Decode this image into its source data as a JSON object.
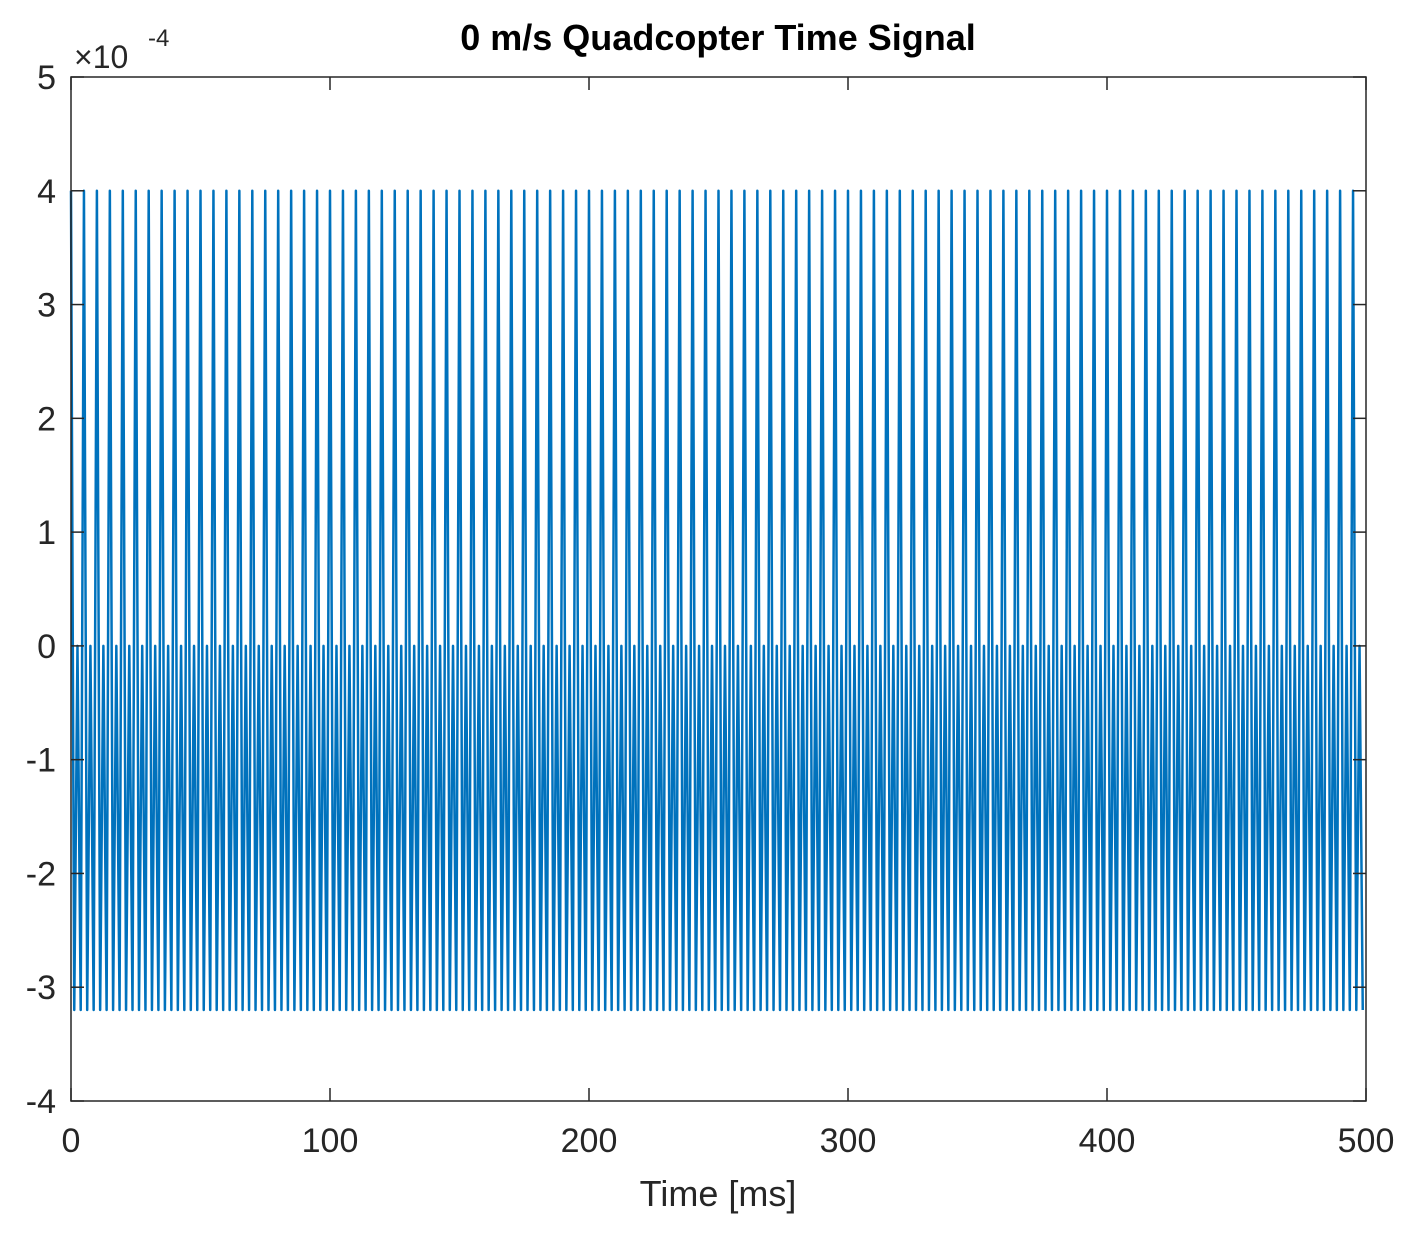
{
  "chart_data": {
    "type": "line",
    "title": "0 m/s Quadcopter Time Signal",
    "x_label": "Time [ms]",
    "y_exponent": {
      "base": "×10",
      "power": "-4"
    },
    "color": "#0072bd",
    "xlim": [
      0,
      500
    ],
    "xticks": [
      0,
      100,
      200,
      300,
      400,
      500
    ],
    "ylim": [
      -4,
      5
    ],
    "yticks": [
      -4,
      -3,
      -2,
      -1,
      0,
      1,
      2,
      3,
      4,
      5
    ],
    "x": [
      0,
      1.25,
      2.5,
      3.75,
      5,
      6.25,
      7.5,
      8.75,
      10,
      11.25,
      12.5,
      13.75,
      15,
      16.25,
      17.5,
      18.75,
      20,
      21.25,
      22.5,
      23.75,
      25,
      26.25,
      27.5,
      28.75,
      30,
      31.25,
      32.5,
      33.75,
      35,
      36.25,
      37.5,
      38.75,
      40,
      41.25,
      42.5,
      43.75,
      45,
      46.25,
      47.5,
      48.75,
      50,
      51.25,
      52.5,
      53.75,
      55,
      56.25,
      57.5,
      58.75,
      60,
      61.25,
      62.5,
      63.75,
      65,
      66.25,
      67.5,
      68.75,
      70,
      71.25,
      72.5,
      73.75,
      75,
      76.25,
      77.5,
      78.75,
      80,
      81.25,
      82.5,
      83.75,
      85,
      86.25,
      87.5,
      88.75,
      90,
      91.25,
      92.5,
      93.75,
      95,
      96.25,
      97.5,
      98.75,
      100,
      101.25,
      102.5,
      103.75,
      105,
      106.25,
      107.5,
      108.75,
      110,
      111.25,
      112.5,
      113.75,
      115,
      116.25,
      117.5,
      118.75,
      120,
      121.25,
      122.5,
      123.75,
      125,
      126.25,
      127.5,
      128.75,
      130,
      131.25,
      132.5,
      133.75,
      135,
      136.25,
      137.5,
      138.75,
      140,
      141.25,
      142.5,
      143.75,
      145,
      146.25,
      147.5,
      148.75,
      150,
      151.25,
      152.5,
      153.75,
      155,
      156.25,
      157.5,
      158.75,
      160,
      161.25,
      162.5,
      163.75,
      165,
      166.25,
      167.5,
      168.75,
      170,
      171.25,
      172.5,
      173.75,
      175,
      176.25,
      177.5,
      178.75,
      180,
      181.25,
      182.5,
      183.75,
      185,
      186.25,
      187.5,
      188.75,
      190,
      191.25,
      192.5,
      193.75,
      195,
      196.25,
      197.5,
      198.75,
      200,
      201.25,
      202.5,
      203.75,
      205,
      206.25,
      207.5,
      208.75,
      210,
      211.25,
      212.5,
      213.75,
      215,
      216.25,
      217.5,
      218.75,
      220,
      221.25,
      222.5,
      223.75,
      225,
      226.25,
      227.5,
      228.75,
      230,
      231.25,
      232.5,
      233.75,
      235,
      236.25,
      237.5,
      238.75,
      240,
      241.25,
      242.5,
      243.75,
      245,
      246.25,
      247.5,
      248.75,
      250,
      251.25,
      252.5,
      253.75,
      255,
      256.25,
      257.5,
      258.75,
      260,
      261.25,
      262.5,
      263.75,
      265,
      266.25,
      267.5,
      268.75,
      270,
      271.25,
      272.5,
      273.75,
      275,
      276.25,
      277.5,
      278.75,
      280,
      281.25,
      282.5,
      283.75,
      285,
      286.25,
      287.5,
      288.75,
      290,
      291.25,
      292.5,
      293.75,
      295,
      296.25,
      297.5,
      298.75,
      300,
      301.25,
      302.5,
      303.75,
      305,
      306.25,
      307.5,
      308.75,
      310,
      311.25,
      312.5,
      313.75,
      315,
      316.25,
      317.5,
      318.75,
      320,
      321.25,
      322.5,
      323.75,
      325,
      326.25,
      327.5,
      328.75,
      330,
      331.25,
      332.5,
      333.75,
      335,
      336.25,
      337.5,
      338.75,
      340,
      341.25,
      342.5,
      343.75,
      345,
      346.25,
      347.5,
      348.75,
      350,
      351.25,
      352.5,
      353.75,
      355,
      356.25,
      357.5,
      358.75,
      360,
      361.25,
      362.5,
      363.75,
      365,
      366.25,
      367.5,
      368.75,
      370,
      371.25,
      372.5,
      373.75,
      375,
      376.25,
      377.5,
      378.75,
      380,
      381.25,
      382.5,
      383.75,
      385,
      386.25,
      387.5,
      388.75,
      390,
      391.25,
      392.5,
      393.75,
      395,
      396.25,
      397.5,
      398.75,
      400,
      401.25,
      402.5,
      403.75,
      405,
      406.25,
      407.5,
      408.75,
      410,
      411.25,
      412.5,
      413.75,
      415,
      416.25,
      417.5,
      418.75,
      420,
      421.25,
      422.5,
      423.75,
      425,
      426.25,
      427.5,
      428.75,
      430,
      431.25,
      432.5,
      433.75,
      435,
      436.25,
      437.5,
      438.75,
      440,
      441.25,
      442.5,
      443.75,
      445,
      446.25,
      447.5,
      448.75,
      450,
      451.25,
      452.5,
      453.75,
      455,
      456.25,
      457.5,
      458.75,
      460,
      461.25,
      462.5,
      463.75,
      465,
      466.25,
      467.5,
      468.75,
      470,
      471.25,
      472.5,
      473.75,
      475,
      476.25,
      477.5,
      478.75,
      480,
      481.25,
      482.5,
      483.75,
      485,
      486.25,
      487.5,
      488.75,
      490,
      491.25,
      492.5,
      493.75,
      495,
      496.25,
      497.5,
      498.75
    ],
    "values": [
      4,
      -3.2,
      0,
      -3.2,
      4,
      -3.2,
      0,
      -3.2,
      4,
      -3.2,
      0,
      -3.2,
      4,
      -3.2,
      0,
      -3.2,
      4,
      -3.2,
      0,
      -3.2,
      4,
      -3.2,
      0,
      -3.2,
      4,
      -3.2,
      0,
      -3.2,
      4,
      -3.2,
      0,
      -3.2,
      4,
      -3.2,
      0,
      -3.2,
      4,
      -3.2,
      0,
      -3.2,
      4,
      -3.2,
      0,
      -3.2,
      4,
      -3.2,
      0,
      -3.2,
      4,
      -3.2,
      0,
      -3.2,
      4,
      -3.2,
      0,
      -3.2,
      4,
      -3.2,
      0,
      -3.2,
      4,
      -3.2,
      0,
      -3.2,
      4,
      -3.2,
      0,
      -3.2,
      4,
      -3.2,
      0,
      -3.2,
      4,
      -3.2,
      0,
      -3.2,
      4,
      -3.2,
      0,
      -3.2,
      4,
      -3.2,
      0,
      -3.2,
      4,
      -3.2,
      0,
      -3.2,
      4,
      -3.2,
      0,
      -3.2,
      4,
      -3.2,
      0,
      -3.2,
      4,
      -3.2,
      0,
      -3.2,
      4,
      -3.2,
      0,
      -3.2,
      4,
      -3.2,
      0,
      -3.2,
      4,
      -3.2,
      0,
      -3.2,
      4,
      -3.2,
      0,
      -3.2,
      4,
      -3.2,
      0,
      -3.2,
      4,
      -3.2,
      0,
      -3.2,
      4,
      -3.2,
      0,
      -3.2,
      4,
      -3.2,
      0,
      -3.2,
      4,
      -3.2,
      0,
      -3.2,
      4,
      -3.2,
      0,
      -3.2,
      4,
      -3.2,
      0,
      -3.2,
      4,
      -3.2,
      0,
      -3.2,
      4,
      -3.2,
      0,
      -3.2,
      4,
      -3.2,
      0,
      -3.2,
      4,
      -3.2,
      0,
      -3.2,
      4,
      -3.2,
      0,
      -3.2,
      4,
      -3.2,
      0,
      -3.2,
      4,
      -3.2,
      0,
      -3.2,
      4,
      -3.2,
      0,
      -3.2,
      4,
      -3.2,
      0,
      -3.2,
      4,
      -3.2,
      0,
      -3.2,
      4,
      -3.2,
      0,
      -3.2,
      4,
      -3.2,
      0,
      -3.2,
      4,
      -3.2,
      0,
      -3.2,
      4,
      -3.2,
      0,
      -3.2,
      4,
      -3.2,
      0,
      -3.2,
      4,
      -3.2,
      0,
      -3.2,
      4,
      -3.2,
      0,
      -3.2,
      4,
      -3.2,
      0,
      -3.2,
      4,
      -3.2,
      0,
      -3.2,
      4,
      -3.2,
      0,
      -3.2,
      4,
      -3.2,
      0,
      -3.2,
      4,
      -3.2,
      0,
      -3.2,
      4,
      -3.2,
      0,
      -3.2,
      4,
      -3.2,
      0,
      -3.2,
      4,
      -3.2,
      0,
      -3.2,
      4,
      -3.2,
      0,
      -3.2,
      4,
      -3.2,
      0,
      -3.2,
      4,
      -3.2,
      0,
      -3.2,
      4,
      -3.2,
      0,
      -3.2,
      4,
      -3.2,
      0,
      -3.2,
      4,
      -3.2,
      0,
      -3.2,
      4,
      -3.2,
      0,
      -3.2,
      4,
      -3.2,
      0,
      -3.2,
      4,
      -3.2,
      0,
      -3.2,
      4,
      -3.2,
      0,
      -3.2,
      4,
      -3.2,
      0,
      -3.2,
      4,
      -3.2,
      0,
      -3.2,
      4,
      -3.2,
      0,
      -3.2,
      4,
      -3.2,
      0,
      -3.2,
      4,
      -3.2,
      0,
      -3.2,
      4,
      -3.2,
      0,
      -3.2,
      4,
      -3.2,
      0,
      -3.2,
      4,
      -3.2,
      0,
      -3.2,
      4,
      -3.2,
      0,
      -3.2,
      4,
      -3.2,
      0,
      -3.2,
      4,
      -3.2,
      0,
      -3.2,
      4,
      -3.2,
      0,
      -3.2,
      4,
      -3.2,
      0,
      -3.2,
      4,
      -3.2,
      0,
      -3.2,
      4,
      -3.2,
      0,
      -3.2,
      4,
      -3.2,
      0,
      -3.2,
      4,
      -3.2,
      0,
      -3.2,
      4,
      -3.2,
      0,
      -3.2,
      4,
      -3.2,
      0,
      -3.2,
      4,
      -3.2,
      0,
      -3.2,
      4,
      -3.2,
      0,
      -3.2,
      4,
      -3.2,
      0,
      -3.2,
      4,
      -3.2,
      0,
      -3.2,
      4,
      -3.2,
      0,
      -3.2,
      4,
      -3.2,
      0,
      -3.2,
      4,
      -3.2,
      0,
      -3.2,
      4,
      -3.2,
      0,
      -3.2,
      4,
      -3.2,
      0,
      -3.2,
      4,
      -3.2,
      0,
      -3.2
    ]
  }
}
